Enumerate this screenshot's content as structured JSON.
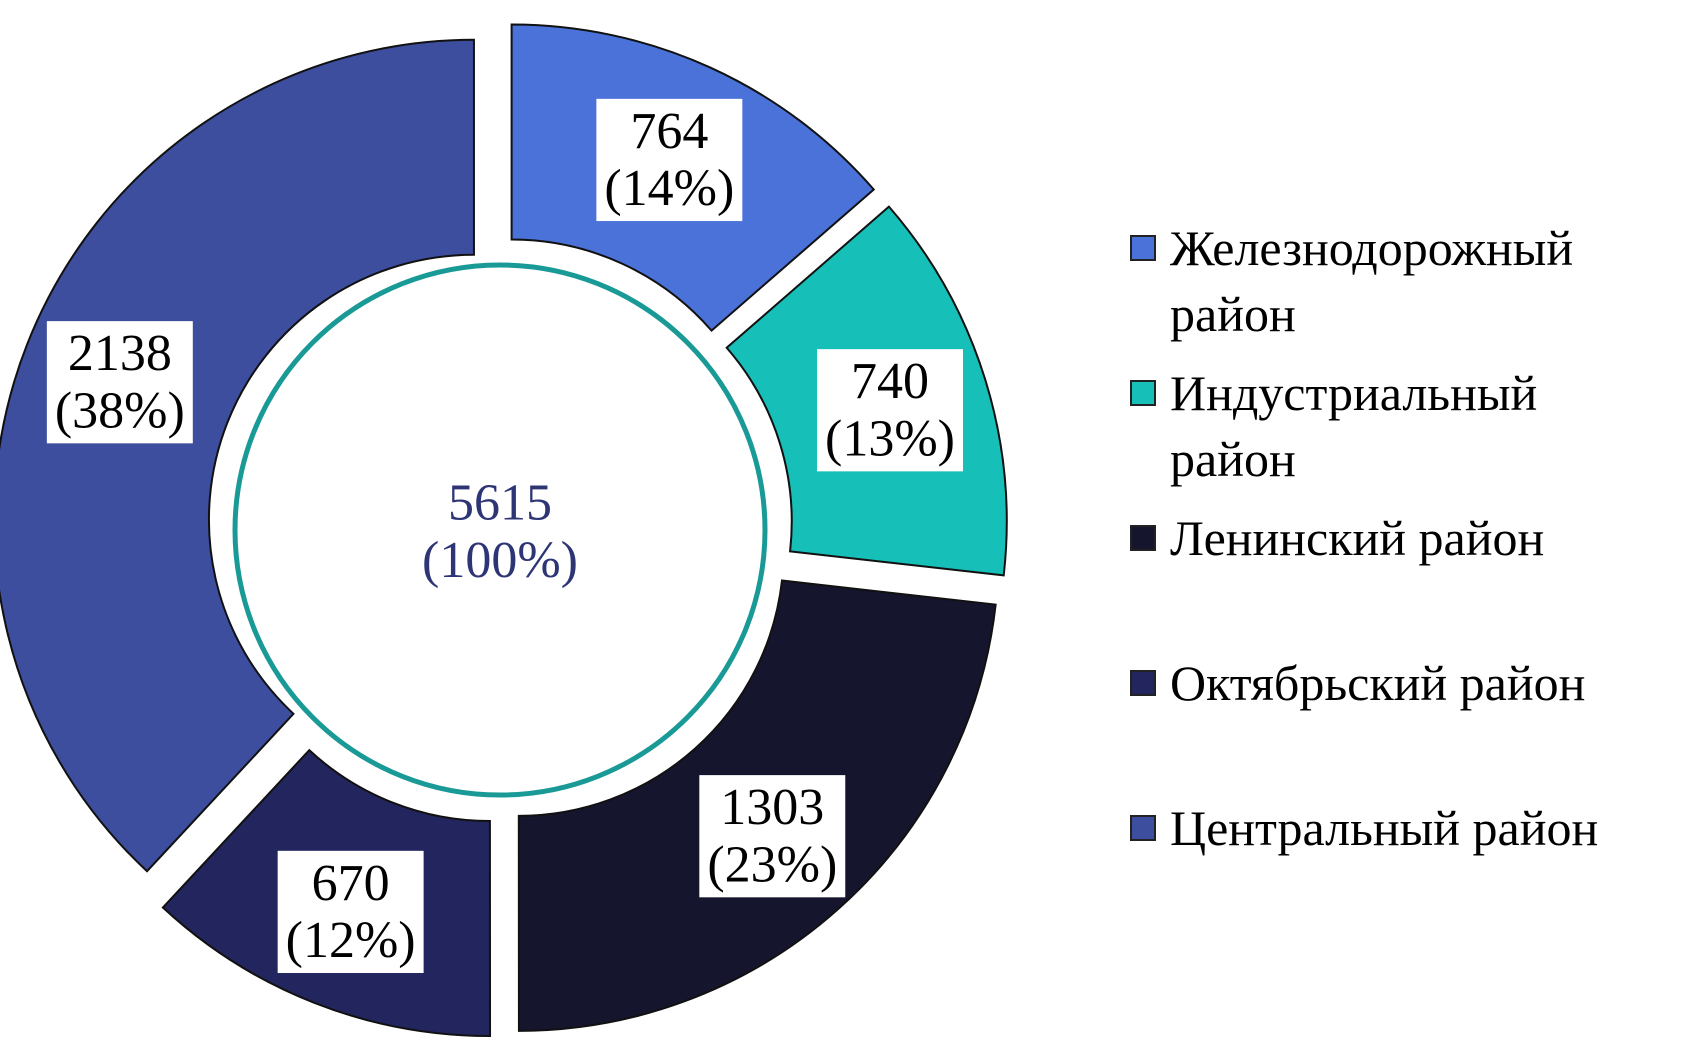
{
  "chart_data": {
    "type": "donut",
    "categories": [
      "Железнодорожный район",
      "Индустриальный район",
      "Ленинский район",
      "Октябрьский район",
      "Центральный район"
    ],
    "values": [
      764,
      740,
      1303,
      670,
      2138
    ],
    "value_labels": [
      "764\n(14%)",
      "740\n(13%)",
      "1303\n(23%)",
      "670\n(12%)",
      "2138\n(38%)"
    ],
    "colors": [
      "#4a72d8",
      "#16bfb8",
      "#15152e",
      "#22255e",
      "#3d4e9e"
    ],
    "center_label": "5615\n(100%)",
    "legend": "right"
  }
}
